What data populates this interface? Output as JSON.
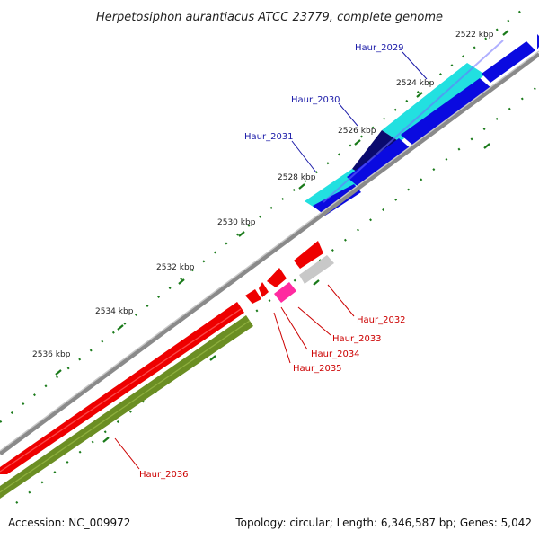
{
  "title": "Herpetosiphon aurantiacus ATCC 23779, complete genome",
  "footer": {
    "accession": "Accession: NC_009972",
    "summary": "Topology: circular; Length: 6,346,587 bp; Genes: 5,042"
  },
  "ticks": [
    {
      "label": "2522 kbp"
    },
    {
      "label": "2524 kbp"
    },
    {
      "label": "2526 kbp"
    },
    {
      "label": "2528 kbp"
    },
    {
      "label": "2530 kbp"
    },
    {
      "label": "2532 kbp"
    },
    {
      "label": "2534 kbp"
    },
    {
      "label": "2536 kbp"
    }
  ],
  "genes_top": [
    {
      "name": "Haur_2029",
      "color": "#1a1aa8"
    },
    {
      "name": "Haur_2030",
      "color": "#1a1aa8"
    },
    {
      "name": "Haur_2031",
      "color": "#1a1aa8"
    }
  ],
  "genes_bottom": [
    {
      "name": "Haur_2032",
      "color": "#cc0000"
    },
    {
      "name": "Haur_2033",
      "color": "#cc0000"
    },
    {
      "name": "Haur_2034",
      "color": "#cc0000"
    },
    {
      "name": "Haur_2035",
      "color": "#cc0000"
    },
    {
      "name": "Haur_2036",
      "color": "#cc0000"
    }
  ],
  "colors": {
    "backbone": "#8a8a8a",
    "forward_cds": "#0000dd",
    "cyan_track": "#22e0e0",
    "navy_block": "#0a0a6e",
    "reverse_cds": "#ee0000",
    "pink_block": "#ff2aa0",
    "gray_block": "#c8c8c8",
    "olive_track": "#6b8e23",
    "tick_green": "#1a7a1a"
  }
}
